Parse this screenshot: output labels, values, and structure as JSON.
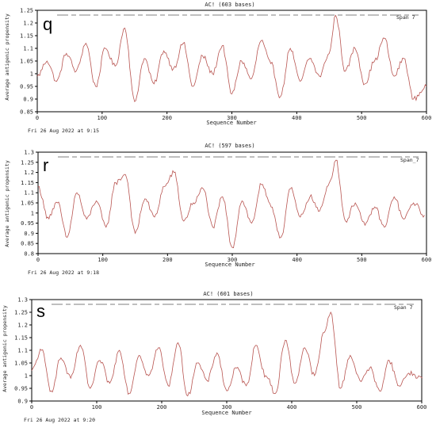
{
  "chart_data": [
    {
      "type": "line",
      "panel": "q",
      "title": "AC!  (603 bases)",
      "legend": "Span 7",
      "xlabel": "Sequence Number",
      "ylabel": "Average antigenic propensity",
      "xlim": [
        0,
        600
      ],
      "ylim": [
        0.85,
        1.25
      ],
      "xticks": [
        0,
        100,
        200,
        300,
        400,
        500,
        600
      ],
      "yticks": [
        0.85,
        0.9,
        0.95,
        1,
        1.05,
        1.1,
        1.15,
        1.2,
        1.25
      ],
      "date": "Fri 26 Aug 2022 at 9:15",
      "line_color": "#b85450",
      "series": [
        {
          "x": [
            0,
            15,
            30,
            45,
            60,
            75,
            90,
            105,
            120,
            135,
            150,
            165,
            180,
            195,
            210,
            225,
            240,
            255,
            270,
            285,
            300,
            315,
            330,
            345,
            360,
            375,
            390,
            405,
            420,
            435,
            450,
            460,
            475,
            490,
            505,
            520,
            535,
            550,
            565,
            580,
            600
          ],
          "y": [
            0.99,
            1.05,
            0.97,
            1.08,
            1.01,
            1.12,
            0.95,
            1.1,
            1.03,
            1.18,
            0.89,
            1.06,
            0.96,
            1.09,
            1.02,
            1.12,
            0.95,
            1.07,
            1.0,
            1.11,
            0.92,
            1.05,
            0.98,
            1.13,
            1.04,
            0.91,
            1.1,
            0.97,
            1.06,
            0.99,
            1.08,
            1.23,
            1.01,
            1.1,
            0.96,
            1.05,
            1.14,
            0.99,
            1.06,
            0.9,
            0.95
          ]
        }
      ]
    },
    {
      "type": "line",
      "panel": "r",
      "title": "AC!  (597 bases)",
      "legend": "Span_7",
      "xlabel": "Sequence Number",
      "ylabel": "Average antigenic propensity",
      "xlim": [
        0,
        600
      ],
      "ylim": [
        0.8,
        1.3
      ],
      "xticks": [
        0,
        100,
        200,
        300,
        400,
        500,
        600
      ],
      "yticks": [
        0.8,
        0.85,
        0.9,
        0.95,
        1,
        1.05,
        1.1,
        1.15,
        1.2,
        1.25,
        1.3
      ],
      "date": "Fri 26 Aug 2022 at 9:18",
      "line_color": "#b85450",
      "series": [
        {
          "x": [
            0,
            15,
            30,
            45,
            60,
            75,
            90,
            105,
            120,
            135,
            150,
            165,
            180,
            195,
            210,
            225,
            240,
            255,
            270,
            285,
            300,
            315,
            330,
            345,
            360,
            375,
            390,
            405,
            420,
            435,
            450,
            460,
            475,
            490,
            505,
            520,
            535,
            550,
            565,
            580,
            597
          ],
          "y": [
            1.13,
            0.98,
            1.05,
            0.88,
            1.1,
            0.97,
            1.06,
            0.93,
            1.15,
            1.19,
            0.9,
            1.07,
            0.98,
            1.13,
            1.2,
            0.96,
            1.05,
            1.12,
            0.93,
            1.08,
            0.83,
            1.06,
            0.95,
            1.14,
            1.03,
            0.88,
            1.12,
            0.98,
            1.08,
            1.01,
            1.15,
            1.26,
            0.96,
            1.05,
            0.94,
            1.03,
            0.93,
            1.08,
            0.97,
            1.05,
            0.99
          ]
        }
      ]
    },
    {
      "type": "line",
      "panel": "s",
      "title": "AC!  (601 bases)",
      "legend": "Span 7",
      "xlabel": "Sequence Number",
      "ylabel": "Average antigenic propensity",
      "xlim": [
        0,
        600
      ],
      "ylim": [
        0.9,
        1.3
      ],
      "xticks": [
        0,
        100,
        200,
        300,
        400,
        500,
        600
      ],
      "yticks": [
        0.9,
        0.95,
        1,
        1.05,
        1.1,
        1.15,
        1.2,
        1.25,
        1.3
      ],
      "date": "Fri 26 Aug 2022 at 9:20",
      "line_color": "#b85450",
      "series": [
        {
          "x": [
            0,
            15,
            30,
            45,
            60,
            75,
            90,
            105,
            120,
            135,
            150,
            165,
            180,
            195,
            210,
            225,
            240,
            255,
            270,
            285,
            300,
            315,
            330,
            345,
            360,
            375,
            390,
            405,
            420,
            435,
            450,
            460,
            475,
            490,
            505,
            520,
            535,
            550,
            565,
            580,
            601
          ],
          "y": [
            1.02,
            1.1,
            0.94,
            1.07,
            0.99,
            1.12,
            0.95,
            1.06,
            0.97,
            1.1,
            0.93,
            1.08,
            1.0,
            1.11,
            0.96,
            1.13,
            0.92,
            1.05,
            0.98,
            1.09,
            0.94,
            1.03,
            0.96,
            1.12,
            1.0,
            0.93,
            1.14,
            0.97,
            1.11,
            1.0,
            1.17,
            1.25,
            0.95,
            1.08,
            0.98,
            1.03,
            0.94,
            1.06,
            0.96,
            1.01,
            0.99
          ]
        }
      ]
    }
  ]
}
